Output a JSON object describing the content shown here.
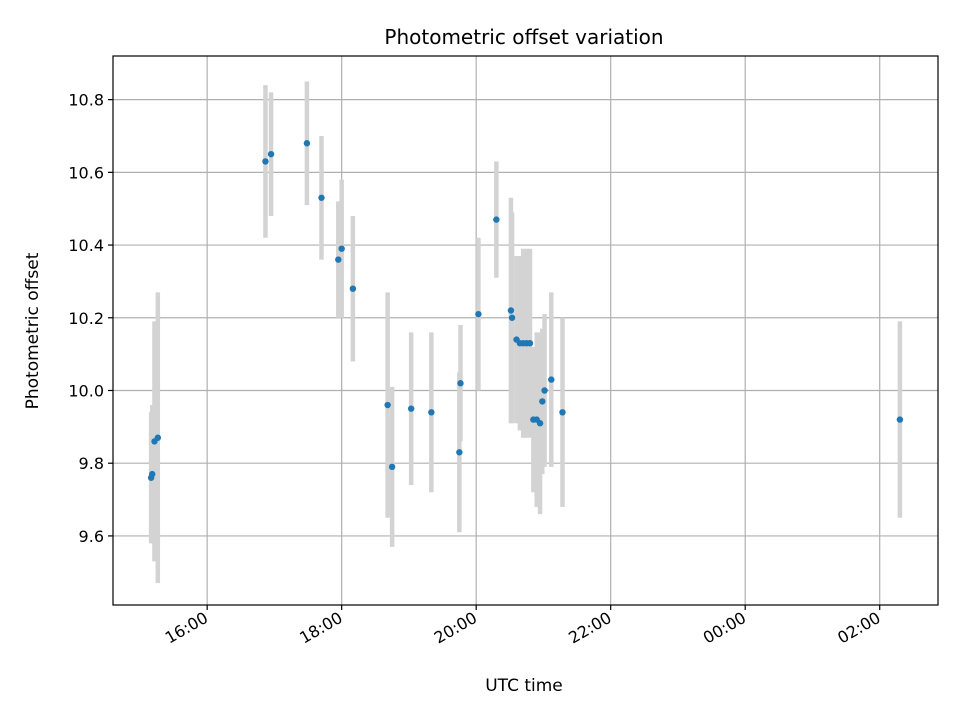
{
  "chart_data": {
    "type": "scatter",
    "title": "Photometric offset variation",
    "xlabel": "UTC time",
    "ylabel": "Photometric offset",
    "x_tick_labels": [
      "16:00",
      "18:00",
      "20:00",
      "22:00",
      "00:00",
      "02:00"
    ],
    "x_tick_times": [
      "2000-01-01T16:00",
      "2000-01-01T18:00",
      "2000-01-01T20:00",
      "2000-01-01T22:00",
      "2000-01-02T00:00",
      "2000-01-02T02:00"
    ],
    "x_range": [
      "2000-01-01T14:36",
      "2000-01-02T02:52"
    ],
    "y_tick_labels": [
      "9.6",
      "9.8",
      "10.0",
      "10.2",
      "10.4",
      "10.6",
      "10.8"
    ],
    "y_ticks": [
      9.6,
      9.8,
      10.0,
      10.2,
      10.4,
      10.6,
      10.8
    ],
    "ylim": [
      9.41,
      10.92
    ],
    "grid": true,
    "point_color": "#1f77b4",
    "errorbar_color": "#d3d3d3",
    "points": [
      {
        "x": "2000-01-01T15:10",
        "y": 9.76,
        "err": 0.18
      },
      {
        "x": "2000-01-01T15:11",
        "y": 9.77,
        "err": 0.19
      },
      {
        "x": "2000-01-01T15:13",
        "y": 9.86,
        "err": 0.33
      },
      {
        "x": "2000-01-01T15:16",
        "y": 9.87,
        "err": 0.4
      },
      {
        "x": "2000-01-01T16:52",
        "y": 10.63,
        "err": 0.21
      },
      {
        "x": "2000-01-01T16:57",
        "y": 10.65,
        "err": 0.17
      },
      {
        "x": "2000-01-01T17:29",
        "y": 10.68,
        "err": 0.17
      },
      {
        "x": "2000-01-01T17:42",
        "y": 10.53,
        "err": 0.17
      },
      {
        "x": "2000-01-01T17:57",
        "y": 10.36,
        "err": 0.16
      },
      {
        "x": "2000-01-01T18:00",
        "y": 10.39,
        "err": 0.19
      },
      {
        "x": "2000-01-01T18:10",
        "y": 10.28,
        "err": 0.2
      },
      {
        "x": "2000-01-01T18:41",
        "y": 9.96,
        "err": 0.31
      },
      {
        "x": "2000-01-01T18:45",
        "y": 9.79,
        "err": 0.22
      },
      {
        "x": "2000-01-01T19:02",
        "y": 9.95,
        "err": 0.21
      },
      {
        "x": "2000-01-01T19:20",
        "y": 9.94,
        "err": 0.22
      },
      {
        "x": "2000-01-01T19:45",
        "y": 9.83,
        "err": 0.22
      },
      {
        "x": "2000-01-01T19:46",
        "y": 10.02,
        "err": 0.16
      },
      {
        "x": "2000-01-01T20:02",
        "y": 10.21,
        "err": 0.21
      },
      {
        "x": "2000-01-01T20:18",
        "y": 10.47,
        "err": 0.16
      },
      {
        "x": "2000-01-01T20:31",
        "y": 10.22,
        "err": 0.31
      },
      {
        "x": "2000-01-01T20:32",
        "y": 10.2,
        "err": 0.29
      },
      {
        "x": "2000-01-01T20:36",
        "y": 10.14,
        "err": 0.23
      },
      {
        "x": "2000-01-01T20:39",
        "y": 10.13,
        "err": 0.24
      },
      {
        "x": "2000-01-01T20:42",
        "y": 10.13,
        "err": 0.26
      },
      {
        "x": "2000-01-01T20:45",
        "y": 10.13,
        "err": 0.26
      },
      {
        "x": "2000-01-01T20:48",
        "y": 10.13,
        "err": 0.26
      },
      {
        "x": "2000-01-01T20:51",
        "y": 9.92,
        "err": 0.2
      },
      {
        "x": "2000-01-01T20:54",
        "y": 9.92,
        "err": 0.24
      },
      {
        "x": "2000-01-01T20:57",
        "y": 9.91,
        "err": 0.25
      },
      {
        "x": "2000-01-01T20:59",
        "y": 9.97,
        "err": 0.2
      },
      {
        "x": "2000-01-01T21:01",
        "y": 10.0,
        "err": 0.21
      },
      {
        "x": "2000-01-01T21:07",
        "y": 10.03,
        "err": 0.24
      },
      {
        "x": "2000-01-01T21:17",
        "y": 9.94,
        "err": 0.26
      },
      {
        "x": "2000-01-02T02:18",
        "y": 9.92,
        "err": 0.27
      }
    ]
  }
}
